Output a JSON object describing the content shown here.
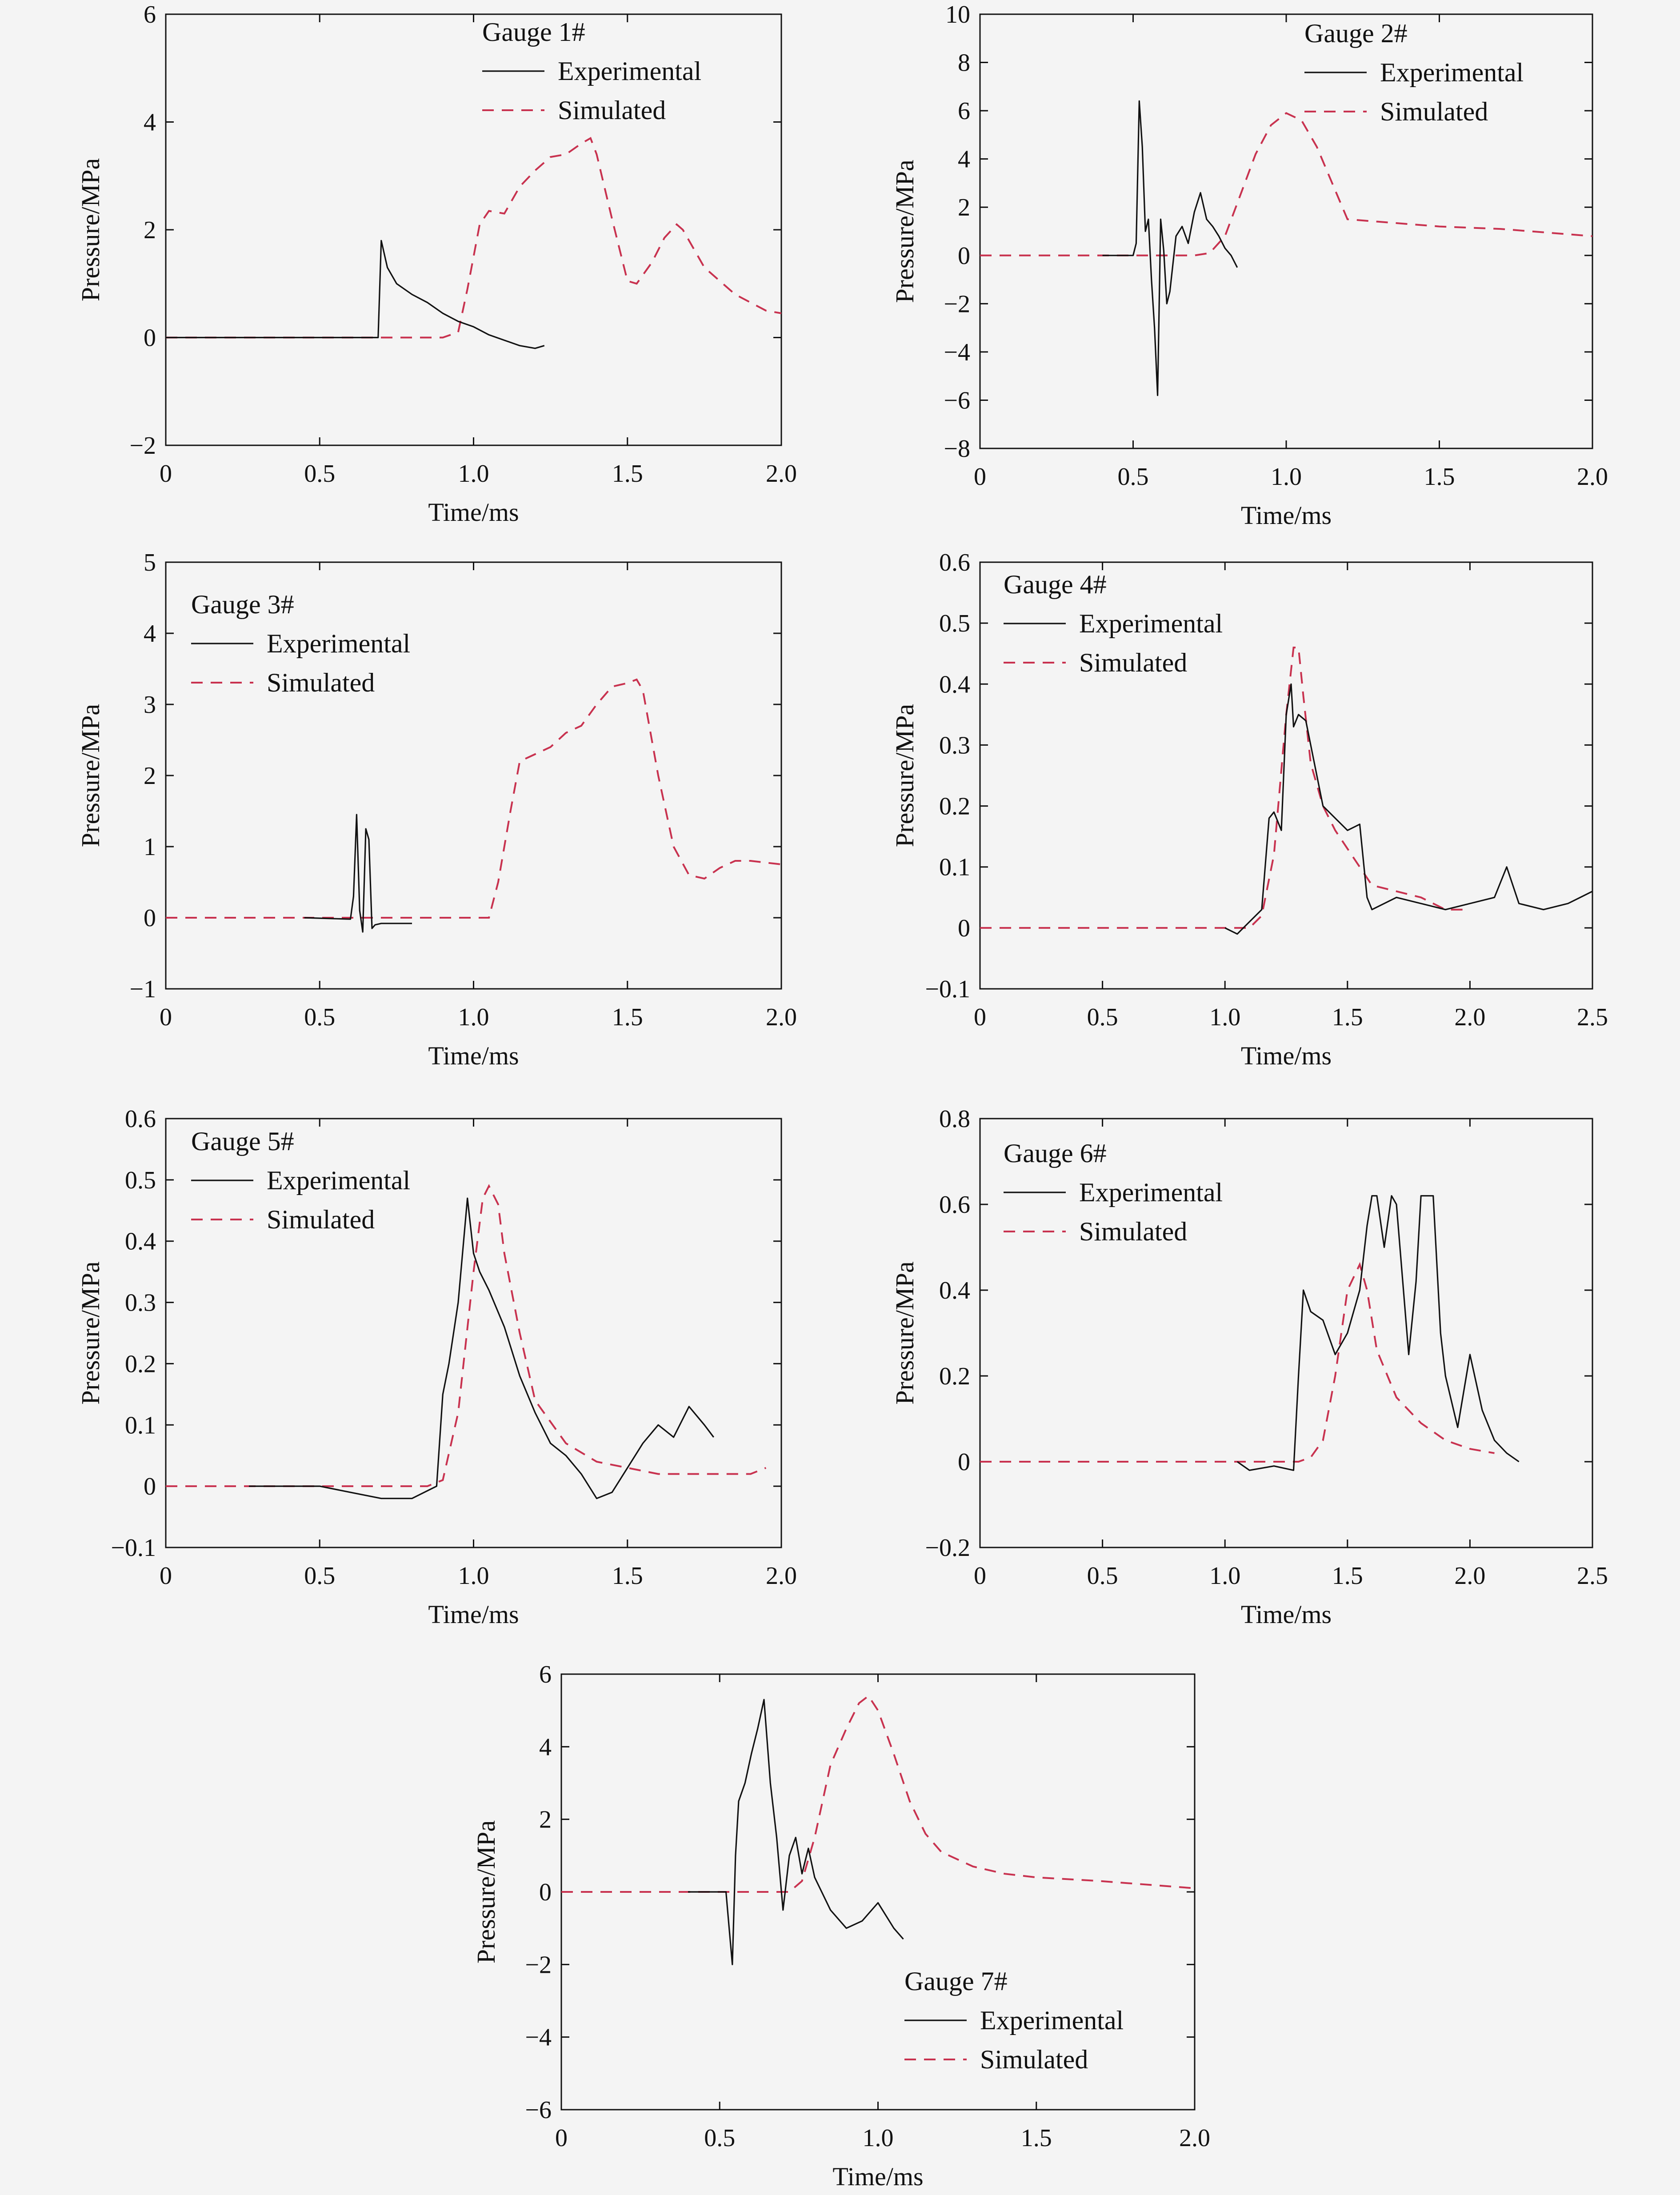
{
  "chart_data": [
    {
      "type": "line",
      "legend_title": "Gauge 1#",
      "legend_position": "top-right",
      "xlabel": "Time/ms",
      "ylabel": "Pressure/MPa",
      "xlim": [
        0,
        2.0
      ],
      "ylim": [
        -2,
        6
      ],
      "x_ticks": [
        0,
        0.5,
        1.0,
        1.5,
        2.0
      ],
      "x_tick_labels": [
        "0",
        "0.5",
        "1.0",
        "1.5",
        "2.0"
      ],
      "y_ticks": [
        -2,
        0,
        2,
        4,
        6
      ],
      "y_tick_labels": [
        "−2",
        "0",
        "2",
        "4",
        "6"
      ],
      "grid": false,
      "series": [
        {
          "name": "Experimental",
          "color": "#111111",
          "style": "solid",
          "x": [
            0,
            0.68,
            0.69,
            0.7,
            0.72,
            0.75,
            0.8,
            0.85,
            0.9,
            0.95,
            1.0,
            1.05,
            1.1,
            1.15,
            1.2,
            1.23
          ],
          "y": [
            0,
            0,
            0,
            1.8,
            1.3,
            1.0,
            0.8,
            0.65,
            0.45,
            0.3,
            0.2,
            0.05,
            -0.05,
            -0.15,
            -0.2,
            -0.15
          ]
        },
        {
          "name": "Simulated",
          "color": "#c8324f",
          "style": "dashed",
          "x": [
            0,
            0.9,
            0.95,
            0.98,
            1.02,
            1.05,
            1.1,
            1.15,
            1.2,
            1.25,
            1.3,
            1.35,
            1.38,
            1.4,
            1.45,
            1.5,
            1.53,
            1.58,
            1.62,
            1.66,
            1.68,
            1.75,
            1.85,
            1.95,
            2.0
          ],
          "y": [
            0,
            0,
            0.1,
            0.9,
            2.1,
            2.35,
            2.3,
            2.8,
            3.1,
            3.35,
            3.4,
            3.6,
            3.7,
            3.4,
            2.2,
            1.05,
            1.0,
            1.4,
            1.85,
            2.1,
            2.0,
            1.3,
            0.8,
            0.5,
            0.45
          ]
        }
      ]
    },
    {
      "type": "line",
      "legend_title": "Gauge 2#",
      "legend_position": "top-right",
      "xlabel": "Time/ms",
      "ylabel": "Pressure/MPa",
      "xlim": [
        0,
        2.0
      ],
      "ylim": [
        -8,
        10
      ],
      "x_ticks": [
        0,
        0.5,
        1.0,
        1.5,
        2.0
      ],
      "x_tick_labels": [
        "0",
        "0.5",
        "1.0",
        "1.5",
        "2.0"
      ],
      "y_ticks": [
        -8,
        -6,
        -4,
        -2,
        0,
        2,
        4,
        6,
        8,
        10
      ],
      "y_tick_labels": [
        "−8",
        "−6",
        "−4",
        "−2",
        "0",
        "2",
        "4",
        "6",
        "8",
        "10"
      ],
      "grid": false,
      "series": [
        {
          "name": "Experimental",
          "color": "#111111",
          "style": "solid",
          "x": [
            0.4,
            0.5,
            0.51,
            0.52,
            0.53,
            0.54,
            0.55,
            0.56,
            0.57,
            0.58,
            0.59,
            0.6,
            0.61,
            0.62,
            0.64,
            0.66,
            0.68,
            0.7,
            0.72,
            0.74,
            0.76,
            0.78,
            0.8,
            0.82,
            0.84
          ],
          "y": [
            0,
            0,
            0.5,
            6.4,
            4.5,
            1.0,
            1.5,
            -1.0,
            -3.0,
            -5.8,
            1.5,
            0.2,
            -2.0,
            -1.5,
            0.8,
            1.2,
            0.5,
            1.8,
            2.6,
            1.5,
            1.2,
            0.8,
            0.3,
            0,
            -0.5
          ]
        },
        {
          "name": "Simulated",
          "color": "#c8324f",
          "style": "dashed",
          "x": [
            0,
            0.7,
            0.75,
            0.8,
            0.85,
            0.9,
            0.95,
            1.0,
            1.05,
            1.1,
            1.15,
            1.2,
            1.3,
            1.5,
            1.7,
            2.0
          ],
          "y": [
            0,
            0,
            0.1,
            0.8,
            2.5,
            4.2,
            5.4,
            5.9,
            5.6,
            4.5,
            3.0,
            1.5,
            1.4,
            1.2,
            1.1,
            0.8
          ]
        }
      ]
    },
    {
      "type": "line",
      "legend_title": "Gauge 3#",
      "legend_position": "top-left",
      "xlabel": "Time/ms",
      "ylabel": "Pressure/MPa",
      "xlim": [
        0,
        2.0
      ],
      "ylim": [
        -1,
        5
      ],
      "x_ticks": [
        0,
        0.5,
        1.0,
        1.5,
        2.0
      ],
      "x_tick_labels": [
        "0",
        "0.5",
        "1.0",
        "1.5",
        "2.0"
      ],
      "y_ticks": [
        -1,
        0,
        1,
        2,
        3,
        4,
        5
      ],
      "y_tick_labels": [
        "−1",
        "0",
        "1",
        "2",
        "3",
        "4",
        "5"
      ],
      "grid": false,
      "series": [
        {
          "name": "Experimental",
          "color": "#111111",
          "style": "solid",
          "x": [
            0.45,
            0.6,
            0.61,
            0.62,
            0.63,
            0.64,
            0.65,
            0.66,
            0.67,
            0.68,
            0.7,
            0.8
          ],
          "y": [
            0,
            -0.02,
            0.3,
            1.45,
            0.1,
            -0.2,
            1.25,
            1.1,
            -0.15,
            -0.1,
            -0.08,
            -0.08
          ]
        },
        {
          "name": "Simulated",
          "color": "#c8324f",
          "style": "dashed",
          "x": [
            0,
            1.05,
            1.08,
            1.12,
            1.15,
            1.2,
            1.25,
            1.3,
            1.35,
            1.4,
            1.45,
            1.5,
            1.53,
            1.55,
            1.6,
            1.65,
            1.7,
            1.75,
            1.8,
            1.85,
            1.9,
            2.0
          ],
          "y": [
            0,
            0,
            0.5,
            1.5,
            2.2,
            2.3,
            2.4,
            2.6,
            2.7,
            3.0,
            3.25,
            3.3,
            3.35,
            3.2,
            2.0,
            1.0,
            0.6,
            0.55,
            0.7,
            0.8,
            0.8,
            0.75
          ]
        }
      ]
    },
    {
      "type": "line",
      "legend_title": "Gauge 4#",
      "legend_position": "top-left",
      "xlabel": "Time/ms",
      "ylabel": "Pressure/MPa",
      "xlim": [
        0,
        2.5
      ],
      "ylim": [
        -0.1,
        0.6
      ],
      "x_ticks": [
        0,
        0.5,
        1.0,
        1.5,
        2.0,
        2.5
      ],
      "x_tick_labels": [
        "0",
        "0.5",
        "1.0",
        "1.5",
        "2.0",
        "2.5"
      ],
      "y_ticks": [
        -0.1,
        0,
        0.1,
        0.2,
        0.3,
        0.4,
        0.5,
        0.6
      ],
      "y_tick_labels": [
        "−0.1",
        "0",
        "0.1",
        "0.2",
        "0.3",
        "0.4",
        "0.5",
        "0.6"
      ],
      "grid": false,
      "series": [
        {
          "name": "Experimental",
          "color": "#111111",
          "style": "solid",
          "x": [
            1.0,
            1.05,
            1.1,
            1.15,
            1.18,
            1.2,
            1.23,
            1.25,
            1.27,
            1.28,
            1.3,
            1.33,
            1.35,
            1.4,
            1.45,
            1.5,
            1.55,
            1.58,
            1.6,
            1.7,
            1.8,
            1.9,
            2.0,
            2.1,
            2.15,
            2.2,
            2.3,
            2.4,
            2.5
          ],
          "y": [
            0,
            -0.01,
            0.01,
            0.03,
            0.18,
            0.19,
            0.16,
            0.35,
            0.4,
            0.33,
            0.35,
            0.34,
            0.3,
            0.2,
            0.18,
            0.16,
            0.17,
            0.05,
            0.03,
            0.05,
            0.04,
            0.03,
            0.04,
            0.05,
            0.1,
            0.04,
            0.03,
            0.04,
            0.06
          ]
        },
        {
          "name": "Simulated",
          "color": "#c8324f",
          "style": "dashed",
          "x": [
            0,
            1.1,
            1.15,
            1.2,
            1.25,
            1.28,
            1.3,
            1.32,
            1.35,
            1.4,
            1.45,
            1.5,
            1.6,
            1.7,
            1.8,
            1.9,
            2.0
          ],
          "y": [
            0,
            0,
            0.02,
            0.12,
            0.35,
            0.46,
            0.46,
            0.38,
            0.27,
            0.2,
            0.16,
            0.13,
            0.07,
            0.06,
            0.05,
            0.03,
            0.03
          ]
        }
      ]
    },
    {
      "type": "line",
      "legend_title": "Gauge 5#",
      "legend_position": "top-left",
      "xlabel": "Time/ms",
      "ylabel": "Pressure/MPa",
      "xlim": [
        0,
        2.0
      ],
      "ylim": [
        -0.1,
        0.6
      ],
      "x_ticks": [
        0,
        0.5,
        1.0,
        1.5,
        2.0
      ],
      "x_tick_labels": [
        "0",
        "0.5",
        "1.0",
        "1.5",
        "2.0"
      ],
      "y_ticks": [
        -0.1,
        0,
        0.1,
        0.2,
        0.3,
        0.4,
        0.5,
        0.6
      ],
      "y_tick_labels": [
        "−0.1",
        "0",
        "0.1",
        "0.2",
        "0.3",
        "0.4",
        "0.5",
        "0.6"
      ],
      "grid": false,
      "series": [
        {
          "name": "Experimental",
          "color": "#111111",
          "style": "solid",
          "x": [
            0.27,
            0.5,
            0.6,
            0.7,
            0.8,
            0.88,
            0.9,
            0.92,
            0.95,
            0.98,
            1.0,
            1.02,
            1.05,
            1.1,
            1.15,
            1.2,
            1.25,
            1.3,
            1.35,
            1.4,
            1.45,
            1.5,
            1.55,
            1.6,
            1.65,
            1.7,
            1.75,
            1.78
          ],
          "y": [
            0,
            0,
            -0.01,
            -0.02,
            -0.02,
            0,
            0.15,
            0.2,
            0.3,
            0.47,
            0.38,
            0.35,
            0.32,
            0.26,
            0.18,
            0.12,
            0.07,
            0.05,
            0.02,
            -0.02,
            -0.01,
            0.03,
            0.07,
            0.1,
            0.08,
            0.13,
            0.1,
            0.08
          ]
        },
        {
          "name": "Simulated",
          "color": "#c8324f",
          "style": "dashed",
          "x": [
            0,
            0.85,
            0.9,
            0.95,
            1.0,
            1.03,
            1.05,
            1.08,
            1.1,
            1.15,
            1.2,
            1.3,
            1.4,
            1.5,
            1.6,
            1.7,
            1.8,
            1.9,
            1.95
          ],
          "y": [
            0,
            0,
            0.01,
            0.12,
            0.35,
            0.47,
            0.49,
            0.46,
            0.38,
            0.25,
            0.14,
            0.07,
            0.04,
            0.03,
            0.02,
            0.02,
            0.02,
            0.02,
            0.03
          ]
        }
      ]
    },
    {
      "type": "line",
      "legend_title": "Gauge 6#",
      "legend_position": "top-left",
      "xlabel": "Time/ms",
      "ylabel": "Pressure/MPa",
      "xlim": [
        0,
        2.5
      ],
      "ylim": [
        -0.2,
        0.8
      ],
      "x_ticks": [
        0,
        0.5,
        1.0,
        1.5,
        2.0,
        2.5
      ],
      "x_tick_labels": [
        "0",
        "0.5",
        "1.0",
        "1.5",
        "2.0",
        "2.5"
      ],
      "y_ticks": [
        -0.2,
        0,
        0.2,
        0.4,
        0.6,
        0.8
      ],
      "y_tick_labels": [
        "−0.2",
        "0",
        "0.2",
        "0.4",
        "0.6",
        "0.8"
      ],
      "grid": false,
      "series": [
        {
          "name": "Experimental",
          "color": "#111111",
          "style": "solid",
          "x": [
            1.05,
            1.1,
            1.2,
            1.28,
            1.3,
            1.32,
            1.35,
            1.4,
            1.45,
            1.5,
            1.55,
            1.58,
            1.6,
            1.62,
            1.65,
            1.68,
            1.7,
            1.75,
            1.78,
            1.8,
            1.82,
            1.85,
            1.88,
            1.9,
            1.95,
            2.0,
            2.05,
            2.1,
            2.15,
            2.2
          ],
          "y": [
            0,
            -0.02,
            -0.01,
            -0.02,
            0.2,
            0.4,
            0.35,
            0.33,
            0.25,
            0.3,
            0.4,
            0.55,
            0.62,
            0.62,
            0.5,
            0.62,
            0.6,
            0.25,
            0.42,
            0.62,
            0.62,
            0.62,
            0.3,
            0.2,
            0.08,
            0.25,
            0.12,
            0.05,
            0.02,
            0
          ]
        },
        {
          "name": "Simulated",
          "color": "#c8324f",
          "style": "dashed",
          "x": [
            0,
            1.3,
            1.35,
            1.4,
            1.45,
            1.5,
            1.55,
            1.58,
            1.62,
            1.7,
            1.8,
            1.9,
            2.0,
            2.1
          ],
          "y": [
            0,
            0,
            0.01,
            0.05,
            0.2,
            0.4,
            0.46,
            0.4,
            0.26,
            0.15,
            0.09,
            0.05,
            0.03,
            0.02
          ]
        }
      ]
    },
    {
      "type": "line",
      "legend_title": "Gauge 7#",
      "legend_position": "bottom-center",
      "xlabel": "Time/ms",
      "ylabel": "Pressure/MPa",
      "xlim": [
        0,
        2.0
      ],
      "ylim": [
        -6,
        6
      ],
      "x_ticks": [
        0,
        0.5,
        1.0,
        1.5,
        2.0
      ],
      "x_tick_labels": [
        "0",
        "0.5",
        "1.0",
        "1.5",
        "2.0"
      ],
      "y_ticks": [
        -6,
        -4,
        -2,
        0,
        2,
        4,
        6
      ],
      "y_tick_labels": [
        "−6",
        "−4",
        "−2",
        "0",
        "2",
        "4",
        "6"
      ],
      "grid": false,
      "series": [
        {
          "name": "Experimental",
          "color": "#111111",
          "style": "solid",
          "x": [
            0.4,
            0.52,
            0.53,
            0.54,
            0.55,
            0.56,
            0.58,
            0.6,
            0.62,
            0.64,
            0.66,
            0.68,
            0.7,
            0.72,
            0.74,
            0.76,
            0.78,
            0.8,
            0.85,
            0.9,
            0.95,
            1.0,
            1.05,
            1.08
          ],
          "y": [
            0,
            0,
            -1.0,
            -2.0,
            1.0,
            2.5,
            3.0,
            3.8,
            4.5,
            5.3,
            3.0,
            1.5,
            -0.5,
            1.0,
            1.5,
            0.5,
            1.2,
            0.4,
            -0.5,
            -1.0,
            -0.8,
            -0.3,
            -1.0,
            -1.3
          ]
        },
        {
          "name": "Simulated",
          "color": "#c8324f",
          "style": "dashed",
          "x": [
            0,
            0.72,
            0.76,
            0.8,
            0.85,
            0.9,
            0.94,
            0.97,
            1.0,
            1.05,
            1.1,
            1.15,
            1.2,
            1.3,
            1.4,
            1.5,
            1.7,
            2.0
          ],
          "y": [
            0,
            0,
            0.3,
            1.5,
            3.5,
            4.5,
            5.2,
            5.4,
            5.0,
            3.8,
            2.5,
            1.6,
            1.1,
            0.7,
            0.5,
            0.4,
            0.3,
            0.1
          ]
        }
      ]
    }
  ]
}
